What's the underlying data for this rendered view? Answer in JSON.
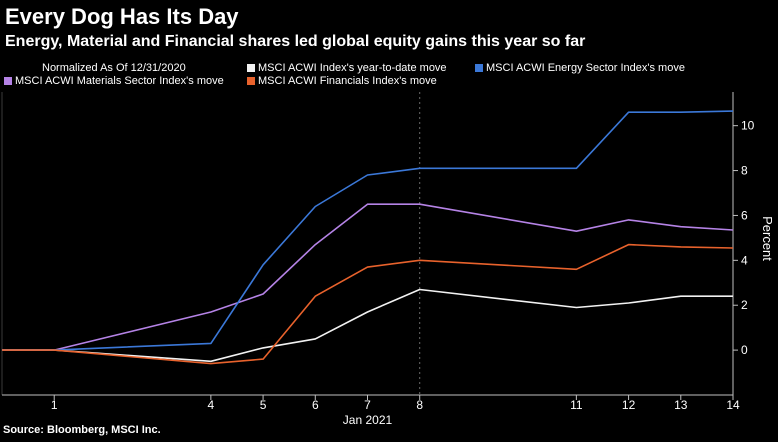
{
  "header": {
    "title": "Every Dog Has Its Day",
    "subtitle": "Energy, Material and Financial shares led global equity gains this year so far"
  },
  "legend": {
    "note": "Normalized As Of 12/31/2020"
  },
  "source": "Source: Bloomberg, MSCI Inc.",
  "colors": {
    "background": "#000000",
    "grid": "#3a3a3a",
    "axis": "#bfbfbf"
  },
  "chart_data": {
    "type": "line",
    "x": [
      0,
      1,
      4,
      5,
      6,
      7,
      8,
      11,
      12,
      13,
      14
    ],
    "x_ticks": [
      "1",
      "4",
      "5",
      "6",
      "7",
      "8",
      "11",
      "12",
      "13",
      "14"
    ],
    "xlabel": "Jan 2021",
    "ylabel": "Percent",
    "ylim": [
      -2,
      11.5
    ],
    "y_ticks": [
      0,
      2,
      4,
      6,
      8,
      10
    ],
    "grid": "dotted vertical at 8",
    "legend_position": "top",
    "series": [
      {
        "name": "MSCI ACWI Materials Sector Index's move",
        "color": "#b583e6",
        "values": [
          0,
          0,
          1.7,
          2.5,
          4.7,
          6.5,
          6.5,
          5.3,
          5.8,
          5.5,
          5.35
        ]
      },
      {
        "name": "MSCI ACWI Index's year-to-date move",
        "color": "#f2f2f2",
        "values": [
          0,
          0,
          -0.5,
          0.1,
          0.5,
          1.7,
          2.7,
          1.9,
          2.1,
          2.4,
          2.4
        ]
      },
      {
        "name": "MSCI ACWI Energy Sector Index's move",
        "color": "#3b78d8",
        "values": [
          0,
          0,
          0.3,
          3.8,
          6.4,
          7.8,
          8.1,
          8.1,
          10.6,
          10.6,
          10.65
        ]
      },
      {
        "name": "MSCI ACWI Financials Index's move",
        "color": "#e8622c",
        "values": [
          0,
          0,
          -0.6,
          -0.4,
          2.4,
          3.7,
          4.0,
          3.6,
          4.7,
          4.6,
          4.55
        ]
      }
    ]
  }
}
